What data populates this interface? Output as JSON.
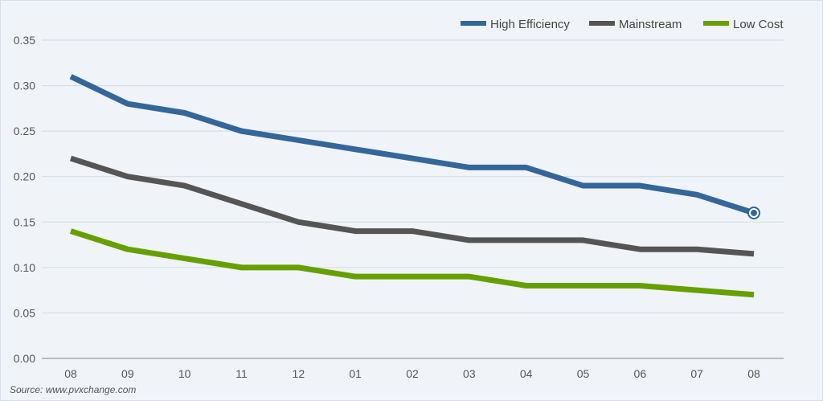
{
  "chart_data": {
    "type": "line",
    "categories": [
      "08",
      "09",
      "10",
      "11",
      "12",
      "01",
      "02",
      "03",
      "04",
      "05",
      "06",
      "07",
      "08"
    ],
    "ylim": [
      0,
      0.35
    ],
    "yticks": [
      "0.00",
      "0.05",
      "0.10",
      "0.15",
      "0.20",
      "0.25",
      "0.30",
      "0.35"
    ],
    "grid": true,
    "legend_position": "top-right",
    "series": [
      {
        "name": "High Efficiency",
        "color": "#336699",
        "values": [
          0.31,
          0.28,
          0.27,
          0.25,
          0.24,
          0.23,
          0.22,
          0.21,
          0.21,
          0.19,
          0.19,
          0.18,
          0.16
        ]
      },
      {
        "name": "Mainstream",
        "color": "#555555",
        "values": [
          0.22,
          0.2,
          0.19,
          0.17,
          0.15,
          0.14,
          0.14,
          0.13,
          0.13,
          0.13,
          0.12,
          0.12,
          0.115
        ]
      },
      {
        "name": "Low Cost",
        "color": "#66a000",
        "values": [
          0.14,
          0.12,
          0.11,
          0.1,
          0.1,
          0.09,
          0.09,
          0.09,
          0.08,
          0.08,
          0.08,
          0.075,
          0.07
        ]
      }
    ],
    "source": "Source: www.pvxchange.com"
  }
}
